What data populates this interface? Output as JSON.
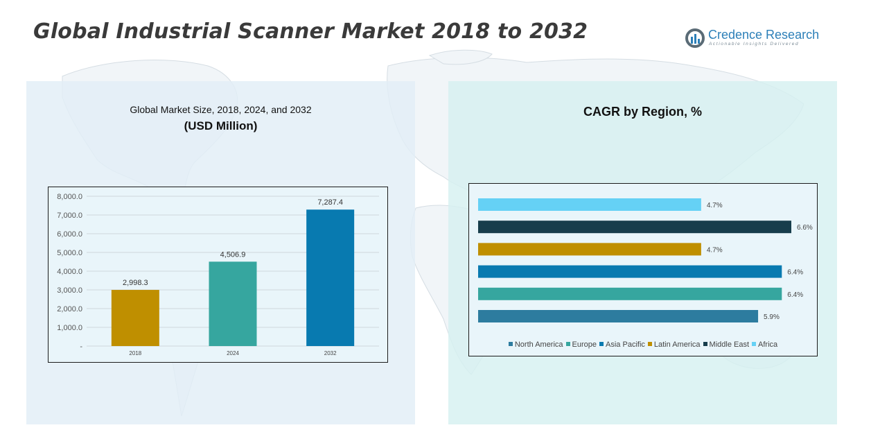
{
  "title": "Global Industrial Scanner Market 2018 to 2032",
  "logo": {
    "name": "Credence Research",
    "tagline": "Actionable Insights Delivered",
    "icon": "logo-mark-icon"
  },
  "colors": {
    "panel_left_bg": "#e2eef6",
    "panel_right_bg": "#d6f0f0",
    "bar_2018": "#bf8f00",
    "bar_2024": "#36a69f",
    "bar_2032": "#087ab0",
    "north_america": "#2d7c9f",
    "europe": "#36a69f",
    "asia_pacific": "#087ab0",
    "latin_america": "#bf8f00",
    "middle_east": "#173d4c",
    "africa": "#65d1f5"
  },
  "chart_data": [
    {
      "type": "bar",
      "title": "Global Market Size, 2018, 2024, and 2032",
      "subtitle": "(USD Million)",
      "categories": [
        "2018",
        "2024",
        "2032"
      ],
      "values": [
        2998.3,
        4506.9,
        7287.4
      ],
      "value_labels": [
        "2,998.3",
        "4,506.9",
        "7,287.4"
      ],
      "bar_colors": [
        "#bf8f00",
        "#36a69f",
        "#087ab0"
      ],
      "ylim": [
        0,
        8000
      ],
      "yticks": [
        0,
        1000,
        2000,
        3000,
        4000,
        5000,
        6000,
        7000,
        8000
      ],
      "ytick_labels": [
        "-",
        "1,000.0",
        "2,000.0",
        "3,000.0",
        "4,000.0",
        "5,000.0",
        "6,000.0",
        "7,000.0",
        "8,000.0"
      ],
      "grid": true,
      "xlabel": "",
      "ylabel": ""
    },
    {
      "type": "bar",
      "orientation": "horizontal",
      "title": "CAGR by Region, %",
      "series": [
        {
          "name": "North America",
          "value": 5.9,
          "label": "5.9%",
          "color": "#2d7c9f"
        },
        {
          "name": "Europe",
          "value": 6.4,
          "label": "6.4%",
          "color": "#36a69f"
        },
        {
          "name": "Asia Pacific",
          "value": 6.4,
          "label": "6.4%",
          "color": "#087ab0"
        },
        {
          "name": "Latin America",
          "value": 4.7,
          "label": "4.7%",
          "color": "#bf8f00"
        },
        {
          "name": "Middle East",
          "value": 6.6,
          "label": "6.6%",
          "color": "#173d4c"
        },
        {
          "name": "Africa",
          "value": 4.7,
          "label": "4.7%",
          "color": "#65d1f5"
        }
      ],
      "xlim": [
        0,
        6.6
      ],
      "legend": "bottom",
      "grid": false
    }
  ]
}
